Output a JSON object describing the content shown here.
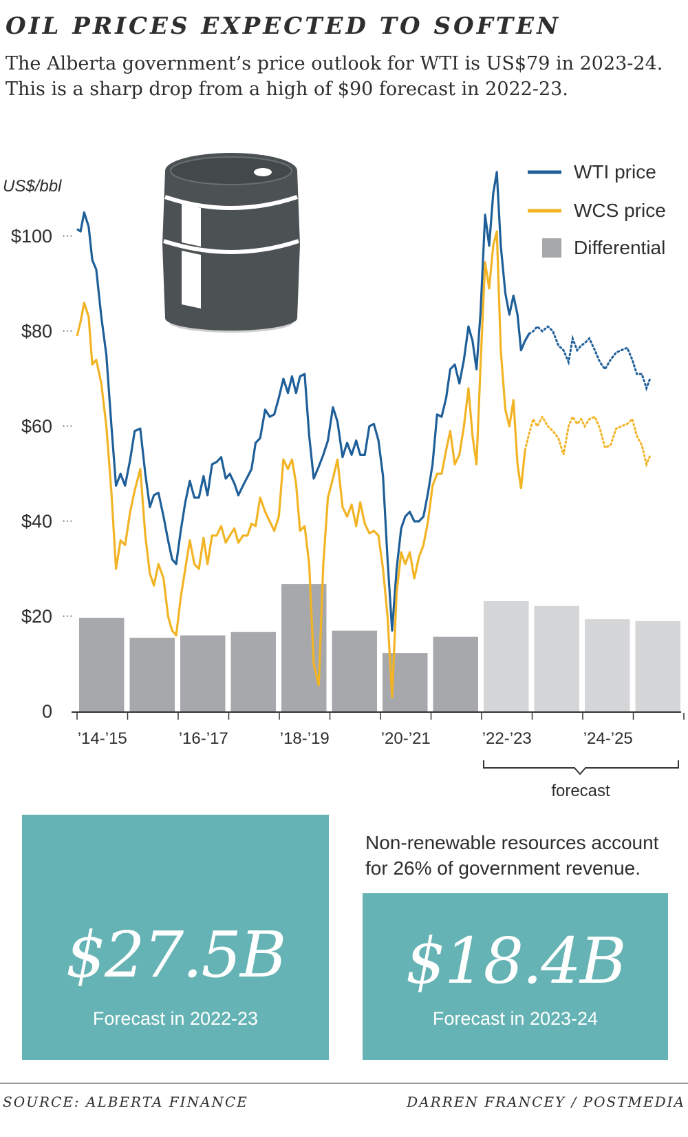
{
  "header": {
    "title": "OIL PRICES EXPECTED TO SOFTEN",
    "subtitle": "The Alberta government’s price outlook for WTI is US$79 in 2023-24. This is a sharp drop from a high of $90 forecast in 2022-23."
  },
  "chart_data": {
    "type": "line",
    "ylabel": "US$/bbl",
    "ylim": [
      0,
      110
    ],
    "yticks": [
      {
        "value": 100,
        "label": "$100"
      },
      {
        "value": 80,
        "label": "$80"
      },
      {
        "value": 60,
        "label": "$60"
      },
      {
        "value": 40,
        "label": "$40"
      },
      {
        "value": 20,
        "label": "$20"
      },
      {
        "value": 0,
        "label": "0"
      }
    ],
    "fiscal_years": [
      "2014-15",
      "2015-16",
      "2016-17",
      "2017-18",
      "2018-19",
      "2019-20",
      "2020-21",
      "2021-22",
      "2022-23",
      "2023-24",
      "2024-25",
      "2025-26"
    ],
    "x_tick_labels": [
      {
        "index": 0,
        "label": "’14-’15"
      },
      {
        "index": 2,
        "label": "’16-’17"
      },
      {
        "index": 4,
        "label": "’18-’19"
      },
      {
        "index": 6,
        "label": "’20-’21"
      },
      {
        "index": 8,
        "label": "’22-’23"
      },
      {
        "index": 10,
        "label": "’24-’25"
      }
    ],
    "forecast_start_index": 8,
    "forecast_label": "forecast",
    "legend": {
      "position": "top-right",
      "items": [
        {
          "label": "WTI price",
          "color": "#1f5f99",
          "kind": "line"
        },
        {
          "label": "WCS price",
          "color": "#f2b425",
          "kind": "line"
        },
        {
          "label": "Differential",
          "color": "#a7a8ab",
          "kind": "bar"
        }
      ]
    },
    "differential": {
      "name": "Differential",
      "values": [
        19.7,
        15.5,
        16.0,
        16.7,
        26.8,
        17.0,
        12.3,
        15.7,
        23.2,
        22.2,
        19.4,
        19.0
      ],
      "color_actual": "#a7a8ab",
      "color_forecast": "#d5d6d8"
    },
    "series": [
      {
        "name": "WTI price",
        "color": "#1f5f99",
        "points": [
          [
            0.0,
            101.5
          ],
          [
            0.07,
            101.0
          ],
          [
            0.14,
            105.0
          ],
          [
            0.23,
            102.0
          ],
          [
            0.3,
            95.0
          ],
          [
            0.38,
            93.0
          ],
          [
            0.48,
            83.0
          ],
          [
            0.58,
            75.0
          ],
          [
            0.68,
            60.0
          ],
          [
            0.77,
            47.5
          ],
          [
            0.86,
            50.0
          ],
          [
            0.95,
            47.5
          ],
          [
            1.05,
            53.0
          ],
          [
            1.14,
            59.0
          ],
          [
            1.25,
            59.5
          ],
          [
            1.35,
            50.0
          ],
          [
            1.44,
            43.0
          ],
          [
            1.52,
            45.5
          ],
          [
            1.61,
            46.0
          ],
          [
            1.71,
            41.0
          ],
          [
            1.8,
            36.0
          ],
          [
            1.88,
            32.0
          ],
          [
            1.96,
            31.0
          ],
          [
            2.05,
            38.0
          ],
          [
            2.14,
            44.0
          ],
          [
            2.23,
            48.5
          ],
          [
            2.32,
            45.0
          ],
          [
            2.41,
            45.0
          ],
          [
            2.5,
            49.5
          ],
          [
            2.58,
            45.5
          ],
          [
            2.67,
            52.0
          ],
          [
            2.76,
            52.5
          ],
          [
            2.85,
            53.5
          ],
          [
            2.94,
            49.0
          ],
          [
            3.02,
            50.0
          ],
          [
            3.11,
            48.0
          ],
          [
            3.19,
            45.5
          ],
          [
            3.28,
            47.5
          ],
          [
            3.45,
            51.0
          ],
          [
            3.53,
            56.5
          ],
          [
            3.62,
            57.5
          ],
          [
            3.72,
            63.5
          ],
          [
            3.81,
            62.0
          ],
          [
            3.9,
            62.5
          ],
          [
            3.99,
            66.0
          ],
          [
            4.08,
            70.0
          ],
          [
            4.17,
            67.0
          ],
          [
            4.25,
            70.5
          ],
          [
            4.33,
            67.0
          ],
          [
            4.41,
            70.5
          ],
          [
            4.5,
            71.0
          ],
          [
            4.59,
            58.0
          ],
          [
            4.68,
            49.0
          ],
          [
            4.78,
            51.5
          ],
          [
            4.87,
            54.0
          ],
          [
            4.96,
            57.0
          ],
          [
            5.06,
            64.0
          ],
          [
            5.15,
            61.0
          ],
          [
            5.25,
            53.5
          ],
          [
            5.34,
            56.5
          ],
          [
            5.43,
            54.0
          ],
          [
            5.52,
            57.0
          ],
          [
            5.6,
            54.0
          ],
          [
            5.69,
            54.0
          ],
          [
            5.78,
            60.0
          ],
          [
            5.87,
            60.5
          ],
          [
            5.96,
            57.0
          ],
          [
            6.05,
            49.5
          ],
          [
            6.14,
            32.0
          ],
          [
            6.23,
            17.0
          ],
          [
            6.32,
            30.0
          ],
          [
            6.41,
            38.5
          ],
          [
            6.49,
            41.0
          ],
          [
            6.58,
            42.0
          ],
          [
            6.67,
            40.0
          ],
          [
            6.76,
            40.0
          ],
          [
            6.85,
            41.0
          ],
          [
            6.94,
            46.0
          ],
          [
            7.03,
            52.0
          ],
          [
            7.12,
            62.5
          ],
          [
            7.21,
            62.0
          ],
          [
            7.3,
            66.0
          ],
          [
            7.38,
            72.0
          ],
          [
            7.47,
            73.0
          ],
          [
            7.56,
            69.0
          ],
          [
            7.65,
            74.0
          ],
          [
            7.74,
            81.0
          ],
          [
            7.82,
            78.0
          ],
          [
            7.9,
            72.0
          ],
          [
            7.98,
            84.0
          ],
          [
            8.07,
            104.5
          ],
          [
            8.15,
            98.0
          ],
          [
            8.23,
            109.0
          ],
          [
            8.3,
            113.5
          ],
          [
            8.38,
            98.0
          ],
          [
            8.47,
            88.0
          ],
          [
            8.55,
            83.5
          ],
          [
            8.63,
            87.5
          ],
          [
            8.71,
            83.5
          ],
          [
            8.78,
            76.0
          ],
          [
            8.86,
            78.0
          ],
          [
            8.94,
            79.5
          ]
        ],
        "forecast_points": [
          [
            8.94,
            79.5
          ],
          [
            9.02,
            80.0
          ],
          [
            9.1,
            81.0
          ],
          [
            9.2,
            80.0
          ],
          [
            9.31,
            81.0
          ],
          [
            9.41,
            80.0
          ],
          [
            9.52,
            77.0
          ],
          [
            9.62,
            76.0
          ],
          [
            9.72,
            73.5
          ],
          [
            9.8,
            78.5
          ],
          [
            9.89,
            76.0
          ],
          [
            9.97,
            77.0
          ],
          [
            10.04,
            77.5
          ],
          [
            10.13,
            78.5
          ],
          [
            10.24,
            76.0
          ],
          [
            10.34,
            73.5
          ],
          [
            10.44,
            72.0
          ],
          [
            10.55,
            74.0
          ],
          [
            10.66,
            75.5
          ],
          [
            10.76,
            76.0
          ],
          [
            10.88,
            76.5
          ],
          [
            10.98,
            74.0
          ],
          [
            11.07,
            71.0
          ],
          [
            11.17,
            71.0
          ],
          [
            11.26,
            68.0
          ],
          [
            11.33,
            70.0
          ]
        ]
      },
      {
        "name": "WCS price",
        "color": "#f2b425",
        "points": [
          [
            0.0,
            79.0
          ],
          [
            0.07,
            82.0
          ],
          [
            0.14,
            86.0
          ],
          [
            0.23,
            83.0
          ],
          [
            0.3,
            73.0
          ],
          [
            0.38,
            74.0
          ],
          [
            0.48,
            69.0
          ],
          [
            0.58,
            60.0
          ],
          [
            0.68,
            46.0
          ],
          [
            0.77,
            30.0
          ],
          [
            0.86,
            36.0
          ],
          [
            0.95,
            35.0
          ],
          [
            1.05,
            42.0
          ],
          [
            1.14,
            46.5
          ],
          [
            1.25,
            51.0
          ],
          [
            1.35,
            37.0
          ],
          [
            1.44,
            29.0
          ],
          [
            1.52,
            26.5
          ],
          [
            1.61,
            31.0
          ],
          [
            1.71,
            28.0
          ],
          [
            1.8,
            20.0
          ],
          [
            1.88,
            17.0
          ],
          [
            1.96,
            16.0
          ],
          [
            2.05,
            24.0
          ],
          [
            2.14,
            30.0
          ],
          [
            2.23,
            36.0
          ],
          [
            2.32,
            31.0
          ],
          [
            2.41,
            30.0
          ],
          [
            2.5,
            36.5
          ],
          [
            2.58,
            31.0
          ],
          [
            2.67,
            37.0
          ],
          [
            2.76,
            37.0
          ],
          [
            2.85,
            39.0
          ],
          [
            2.94,
            35.5
          ],
          [
            3.02,
            37.0
          ],
          [
            3.11,
            38.5
          ],
          [
            3.19,
            35.5
          ],
          [
            3.28,
            37.0
          ],
          [
            3.37,
            37.0
          ],
          [
            3.45,
            39.5
          ],
          [
            3.53,
            39.0
          ],
          [
            3.62,
            45.0
          ],
          [
            3.72,
            42.0
          ],
          [
            3.81,
            40.0
          ],
          [
            3.9,
            38.0
          ],
          [
            3.99,
            41.0
          ],
          [
            4.08,
            53.0
          ],
          [
            4.17,
            51.0
          ],
          [
            4.25,
            53.0
          ],
          [
            4.33,
            48.0
          ],
          [
            4.41,
            38.0
          ],
          [
            4.5,
            39.0
          ],
          [
            4.59,
            31.0
          ],
          [
            4.68,
            10.0
          ],
          [
            4.78,
            5.5
          ],
          [
            4.87,
            31.0
          ],
          [
            4.96,
            45.0
          ],
          [
            5.06,
            49.0
          ],
          [
            5.15,
            53.0
          ],
          [
            5.25,
            43.0
          ],
          [
            5.34,
            41.0
          ],
          [
            5.43,
            43.5
          ],
          [
            5.52,
            39.0
          ],
          [
            5.6,
            44.0
          ],
          [
            5.69,
            39.5
          ],
          [
            5.78,
            37.5
          ],
          [
            5.87,
            38.0
          ],
          [
            5.96,
            37.0
          ],
          [
            6.05,
            30.0
          ],
          [
            6.14,
            20.0
          ],
          [
            6.23,
            3.0
          ],
          [
            6.32,
            25.0
          ],
          [
            6.41,
            33.5
          ],
          [
            6.49,
            31.0
          ],
          [
            6.58,
            33.5
          ],
          [
            6.67,
            28.0
          ],
          [
            6.76,
            32.5
          ],
          [
            6.85,
            35.0
          ],
          [
            6.94,
            40.0
          ],
          [
            7.03,
            47.5
          ],
          [
            7.12,
            50.0
          ],
          [
            7.21,
            50.0
          ],
          [
            7.3,
            55.0
          ],
          [
            7.38,
            59.0
          ],
          [
            7.47,
            52.0
          ],
          [
            7.56,
            54.0
          ],
          [
            7.65,
            60.0
          ],
          [
            7.74,
            68.0
          ],
          [
            7.82,
            58.0
          ],
          [
            7.9,
            52.0
          ],
          [
            7.98,
            73.0
          ],
          [
            8.07,
            94.5
          ],
          [
            8.15,
            89.0
          ],
          [
            8.23,
            98.0
          ],
          [
            8.3,
            101.0
          ],
          [
            8.38,
            76.0
          ],
          [
            8.47,
            63.5
          ],
          [
            8.55,
            60.0
          ],
          [
            8.63,
            65.5
          ],
          [
            8.71,
            52.0
          ],
          [
            8.78,
            47.0
          ],
          [
            8.86,
            55.0
          ]
        ],
        "forecast_points": [
          [
            8.86,
            55.0
          ],
          [
            8.94,
            58.5
          ],
          [
            9.02,
            61.5
          ],
          [
            9.1,
            60.0
          ],
          [
            9.2,
            62.0
          ],
          [
            9.31,
            60.0
          ],
          [
            9.41,
            59.0
          ],
          [
            9.52,
            57.5
          ],
          [
            9.62,
            54.0
          ],
          [
            9.72,
            60.0
          ],
          [
            9.8,
            62.0
          ],
          [
            9.89,
            60.5
          ],
          [
            9.97,
            61.5
          ],
          [
            10.04,
            60.0
          ],
          [
            10.13,
            61.5
          ],
          [
            10.24,
            62.0
          ],
          [
            10.34,
            59.5
          ],
          [
            10.44,
            55.5
          ],
          [
            10.55,
            56.0
          ],
          [
            10.66,
            59.5
          ],
          [
            10.76,
            60.0
          ],
          [
            10.88,
            60.5
          ],
          [
            10.98,
            61.5
          ],
          [
            11.07,
            58.0
          ],
          [
            11.17,
            56.0
          ],
          [
            11.26,
            52.0
          ],
          [
            11.34,
            54.0
          ]
        ]
      }
    ]
  },
  "stats": {
    "box1": {
      "value": "$27.5B",
      "caption": "Forecast in 2022-23"
    },
    "box2": {
      "value": "$18.4B",
      "caption": "Forecast in 2023-24"
    },
    "note": "Non-renewable resources account for 26% of government revenue."
  },
  "footer": {
    "source": "SOURCE: ALBERTA FINANCE",
    "credit": "DARREN FRANCEY / POSTMEDIA"
  },
  "icons": {
    "barrel": "oil-barrel-icon"
  },
  "colors": {
    "teal": "#65b3b4",
    "barrel": "#4c5154"
  }
}
